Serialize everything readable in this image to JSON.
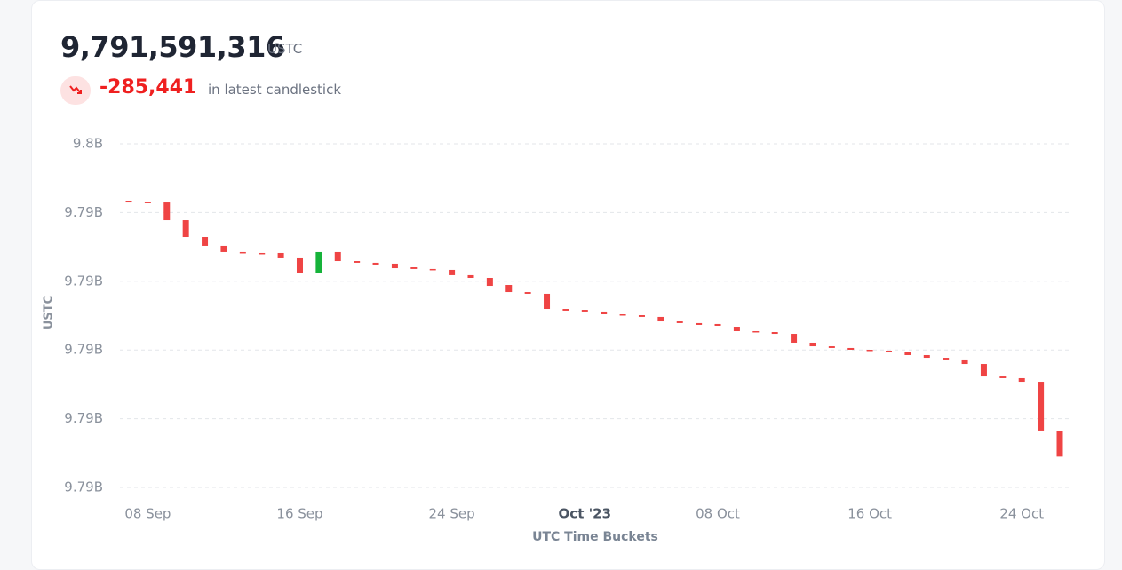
{
  "header": {
    "value": "9,791,591,316",
    "unit": "USTC",
    "change": "-285,441",
    "change_note": "in latest candlestick"
  },
  "chart_data": {
    "type": "candlestick",
    "y_label": "USTC",
    "x_label": "UTC Time Buckets",
    "categories": [
      null,
      "08 Sep",
      null,
      null,
      null,
      null,
      null,
      null,
      null,
      "16 Sep",
      null,
      null,
      null,
      null,
      null,
      null,
      null,
      "24 Sep",
      null,
      null,
      null,
      null,
      null,
      null,
      "Oct '23",
      null,
      null,
      null,
      null,
      null,
      null,
      "08 Oct",
      null,
      null,
      null,
      null,
      null,
      null,
      null,
      "16 Oct",
      null,
      null,
      null,
      null,
      null,
      null,
      null,
      "24 Oct",
      null,
      null
    ],
    "open": [
      9794432000,
      9794422000,
      9794412000,
      9794215000,
      9794028000,
      9793930000,
      9793861000,
      9793851000,
      9793851000,
      9793792000,
      9793634000,
      9793861000,
      9793762000,
      9793743000,
      9793733000,
      9793693000,
      9793674000,
      9793664000,
      9793605000,
      9793575000,
      9793496000,
      9793417000,
      9793398000,
      9793230000,
      9793220000,
      9793201000,
      9793171000,
      9793161000,
      9793142000,
      9793092000,
      9793073000,
      9793063000,
      9793033000,
      9792984000,
      9792974000,
      9792954000,
      9792856000,
      9792816000,
      9792797000,
      9792777000,
      9792767000,
      9792757000,
      9792718000,
      9792688000,
      9792669000,
      9792619000,
      9792481000,
      9792462000,
      9792422000,
      9791876757
    ],
    "close": [
      9794412000,
      9794403000,
      9794215000,
      9794028000,
      9793930000,
      9793861000,
      9793851000,
      9793841000,
      9793792000,
      9793634000,
      9793861000,
      9793762000,
      9793743000,
      9793723000,
      9793683000,
      9793674000,
      9793664000,
      9793605000,
      9793575000,
      9793486000,
      9793417000,
      9793398000,
      9793230000,
      9793211000,
      9793201000,
      9793171000,
      9793161000,
      9793142000,
      9793092000,
      9793073000,
      9793053000,
      9793043000,
      9792984000,
      9792974000,
      9792954000,
      9792856000,
      9792816000,
      9792797000,
      9792777000,
      9792767000,
      9792757000,
      9792718000,
      9792688000,
      9792669000,
      9792619000,
      9792481000,
      9792462000,
      9792422000,
      9791881000,
      9791591316
    ],
    "up_color": "#16b33a",
    "down_color": "#ef4444",
    "ylim": [
      9791250000,
      9795062500
    ],
    "yticks": [
      {
        "value": 9791250000,
        "label": "9.79B"
      },
      {
        "value": 9792012500,
        "label": "9.79B"
      },
      {
        "value": 9792775000,
        "label": "9.79B"
      },
      {
        "value": 9793537500,
        "label": "9.79B"
      },
      {
        "value": 9794300000,
        "label": "9.79B"
      },
      {
        "value": 9795062500,
        "label": "9.8B"
      }
    ],
    "grid": true
  }
}
